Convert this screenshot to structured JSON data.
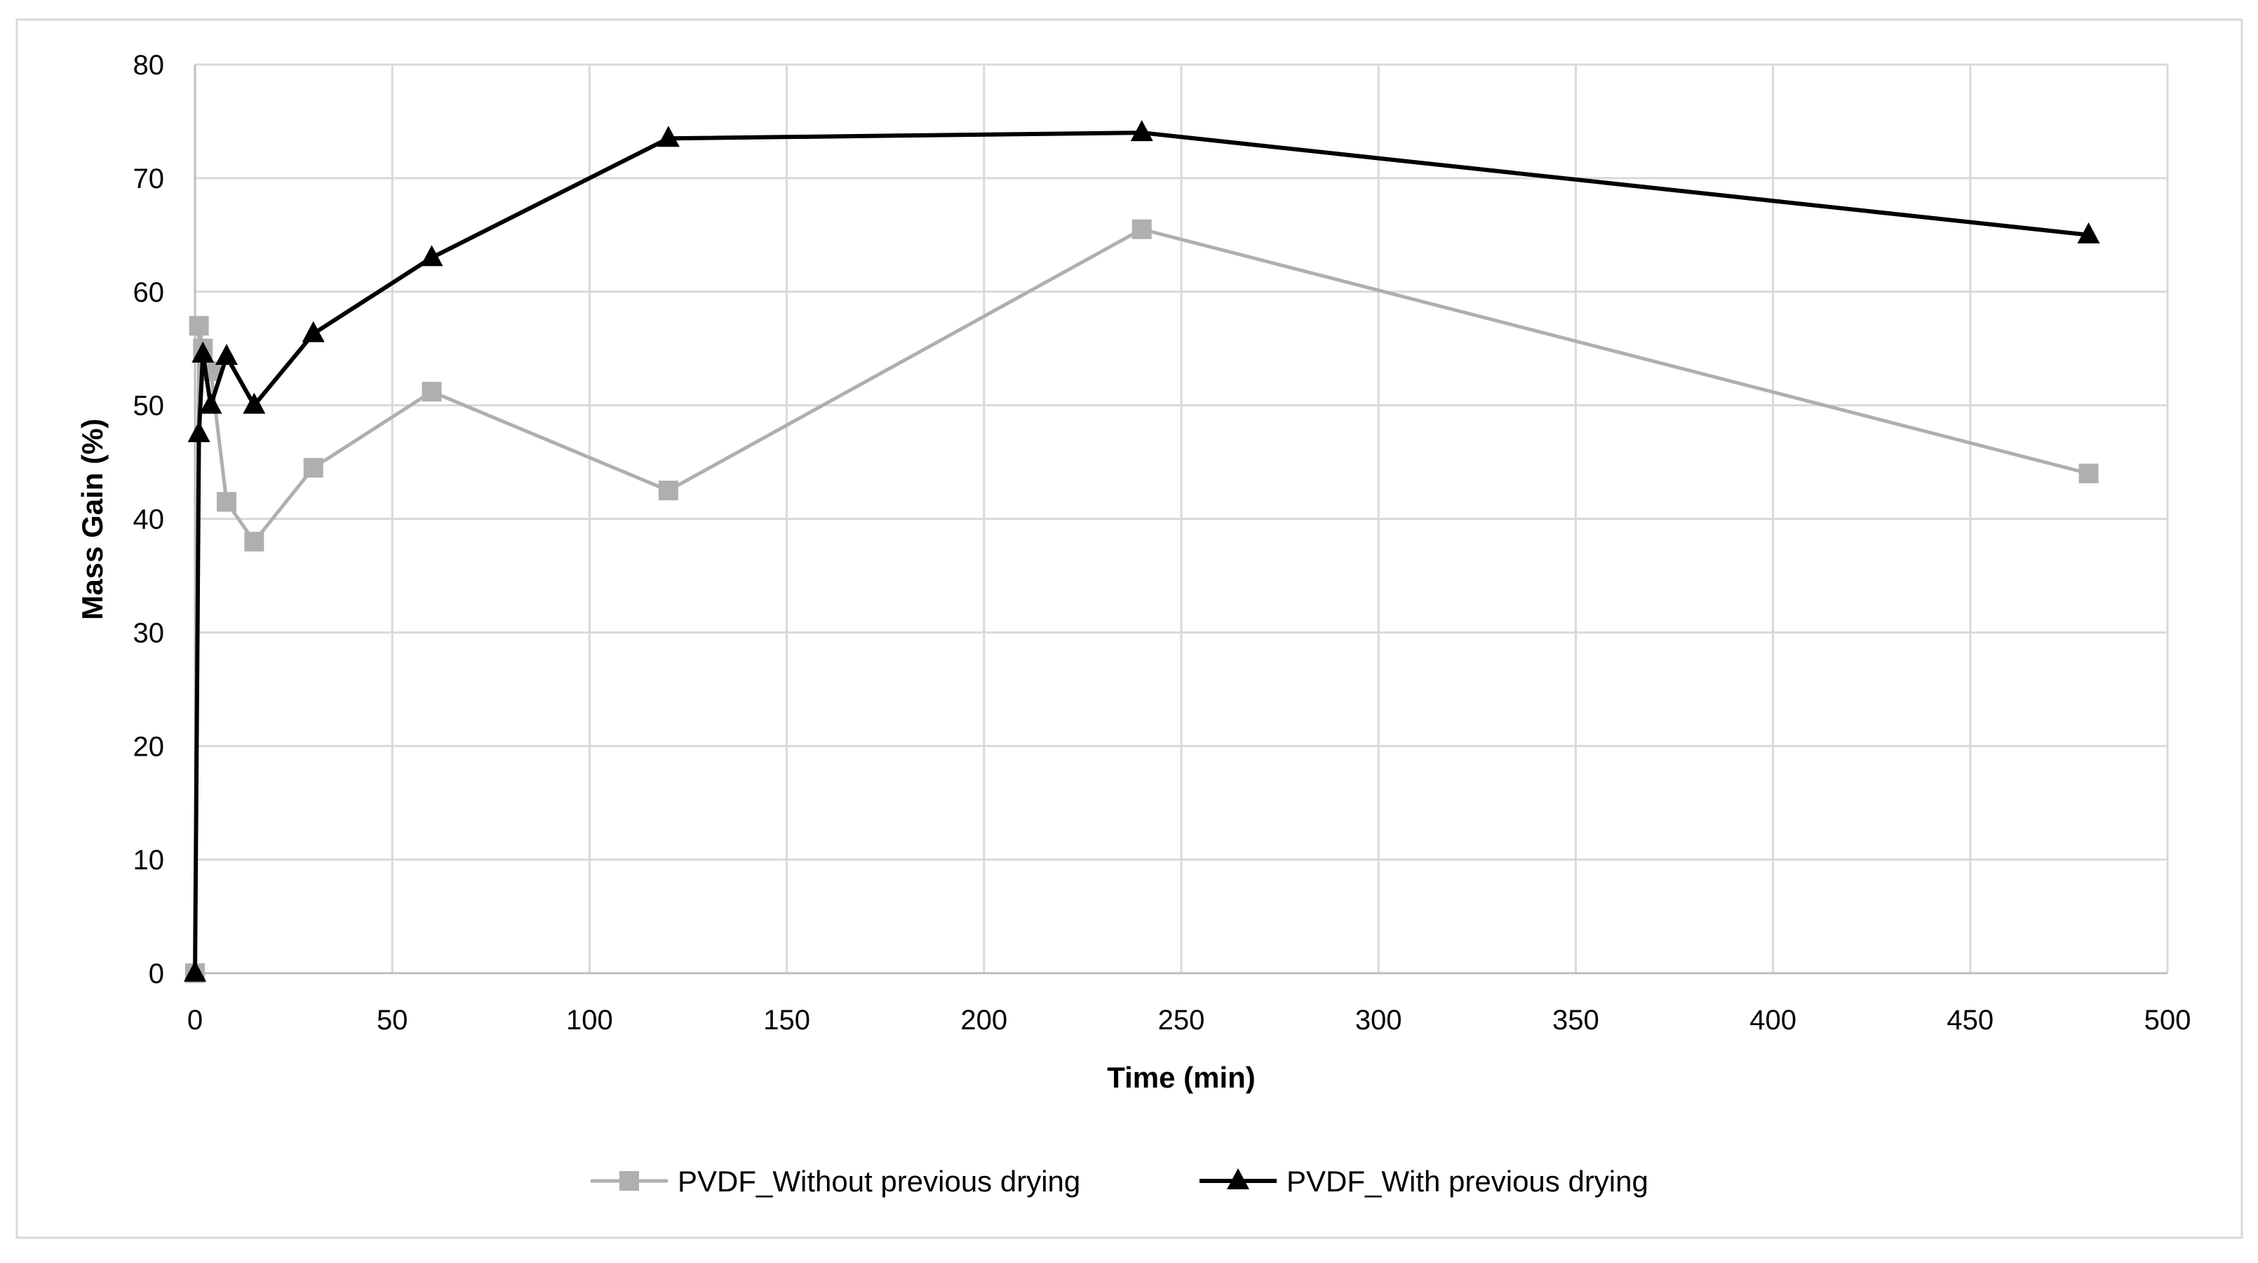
{
  "chart_data": {
    "type": "line",
    "title": "",
    "xlabel": "Time (min)",
    "ylabel": "Mass Gain (%)",
    "xlim": [
      0,
      500
    ],
    "ylim": [
      0,
      80
    ],
    "x_ticks": [
      0,
      50,
      100,
      150,
      200,
      250,
      300,
      350,
      400,
      450,
      500
    ],
    "y_ticks": [
      0,
      10,
      20,
      30,
      40,
      50,
      60,
      70,
      80
    ],
    "grid": true,
    "legend_position": "bottom",
    "series": [
      {
        "name": "PVDF_Without previous drying",
        "marker": "square",
        "color": "#b0aeae",
        "x": [
          0,
          1,
          2,
          4,
          8,
          15,
          30,
          60,
          120,
          240,
          480
        ],
        "y": [
          0,
          57,
          55,
          53,
          41.5,
          38,
          44.5,
          51.2,
          42.5,
          65.5,
          44
        ]
      },
      {
        "name": "PVDF_With previous drying",
        "marker": "triangle",
        "color": "#000000",
        "x": [
          0,
          1,
          2,
          4,
          8,
          15,
          30,
          60,
          120,
          240,
          480
        ],
        "y": [
          0,
          47.5,
          54.5,
          50,
          54.3,
          50,
          56.3,
          63,
          73.5,
          74,
          65
        ]
      }
    ]
  }
}
